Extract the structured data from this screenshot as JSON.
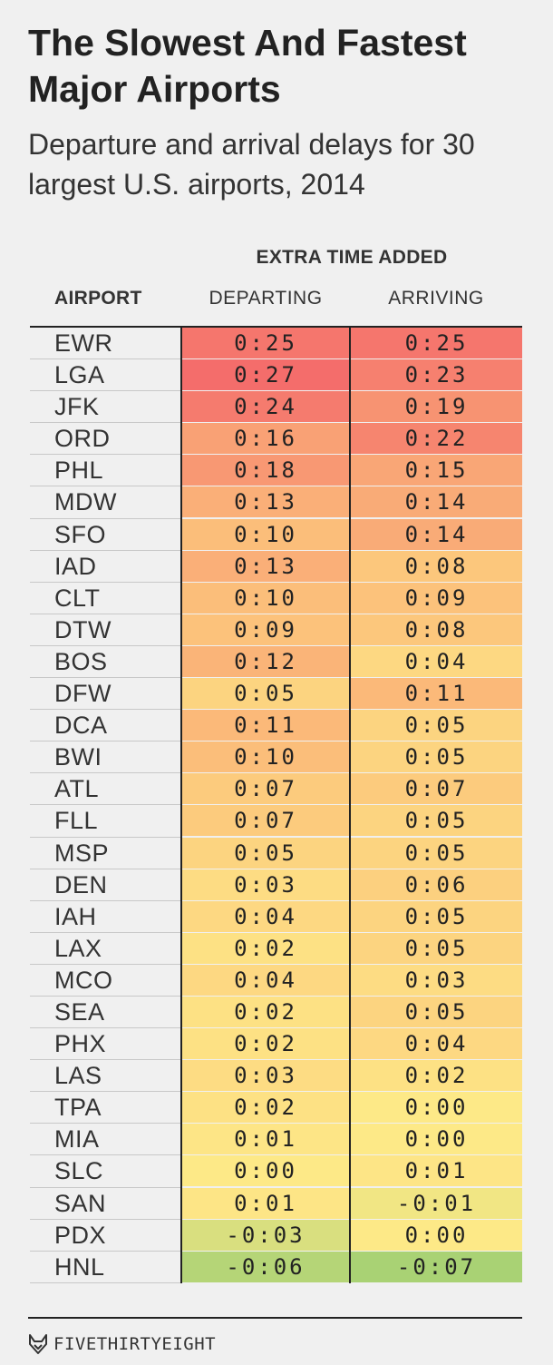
{
  "header": {
    "title": "The Slowest And Fastest Major Airports",
    "subtitle": "Departure and arrival delays for 30 largest U.S. airports, 2014"
  },
  "chart_data": {
    "type": "table",
    "title": "The Slowest And Fastest Major Airports",
    "subtitle": "Departure and arrival delays for 30 largest U.S. airports, 2014",
    "group_header": "EXTRA TIME ADDED",
    "columns": [
      "AIRPORT",
      "DEPARTING",
      "ARRIVING"
    ],
    "color_scale": {
      "min_color": "#a9d274",
      "zero_color": "#fde987",
      "mid_color": "#fcc77c",
      "max_color": "#f46d6b"
    },
    "rows": [
      {
        "airport": "EWR",
        "departing": "0:25",
        "arriving": "0:25"
      },
      {
        "airport": "LGA",
        "departing": "0:27",
        "arriving": "0:23"
      },
      {
        "airport": "JFK",
        "departing": "0:24",
        "arriving": "0:19"
      },
      {
        "airport": "ORD",
        "departing": "0:16",
        "arriving": "0:22"
      },
      {
        "airport": "PHL",
        "departing": "0:18",
        "arriving": "0:15"
      },
      {
        "airport": "MDW",
        "departing": "0:13",
        "arriving": "0:14"
      },
      {
        "airport": "SFO",
        "departing": "0:10",
        "arriving": "0:14"
      },
      {
        "airport": "IAD",
        "departing": "0:13",
        "arriving": "0:08"
      },
      {
        "airport": "CLT",
        "departing": "0:10",
        "arriving": "0:09"
      },
      {
        "airport": "DTW",
        "departing": "0:09",
        "arriving": "0:08"
      },
      {
        "airport": "BOS",
        "departing": "0:12",
        "arriving": "0:04"
      },
      {
        "airport": "DFW",
        "departing": "0:05",
        "arriving": "0:11"
      },
      {
        "airport": "DCA",
        "departing": "0:11",
        "arriving": "0:05"
      },
      {
        "airport": "BWI",
        "departing": "0:10",
        "arriving": "0:05"
      },
      {
        "airport": "ATL",
        "departing": "0:07",
        "arriving": "0:07"
      },
      {
        "airport": "FLL",
        "departing": "0:07",
        "arriving": "0:05"
      },
      {
        "airport": "MSP",
        "departing": "0:05",
        "arriving": "0:05"
      },
      {
        "airport": "DEN",
        "departing": "0:03",
        "arriving": "0:06"
      },
      {
        "airport": "IAH",
        "departing": "0:04",
        "arriving": "0:05"
      },
      {
        "airport": "LAX",
        "departing": "0:02",
        "arriving": "0:05"
      },
      {
        "airport": "MCO",
        "departing": "0:04",
        "arriving": "0:03"
      },
      {
        "airport": "SEA",
        "departing": "0:02",
        "arriving": "0:05"
      },
      {
        "airport": "PHX",
        "departing": "0:02",
        "arriving": "0:04"
      },
      {
        "airport": "LAS",
        "departing": "0:03",
        "arriving": "0:02"
      },
      {
        "airport": "TPA",
        "departing": "0:02",
        "arriving": "0:00"
      },
      {
        "airport": "MIA",
        "departing": "0:01",
        "arriving": "0:00"
      },
      {
        "airport": "SLC",
        "departing": "0:00",
        "arriving": "0:01"
      },
      {
        "airport": "SAN",
        "departing": "0:01",
        "arriving": "-0:01"
      },
      {
        "airport": "PDX",
        "departing": "-0:03",
        "arriving": "0:00"
      },
      {
        "airport": "HNL",
        "departing": "-0:06",
        "arriving": "-0:07"
      }
    ]
  },
  "footer": {
    "logo_text": "FIVETHIRTYEIGHT",
    "logo_icon": "fox-icon"
  }
}
